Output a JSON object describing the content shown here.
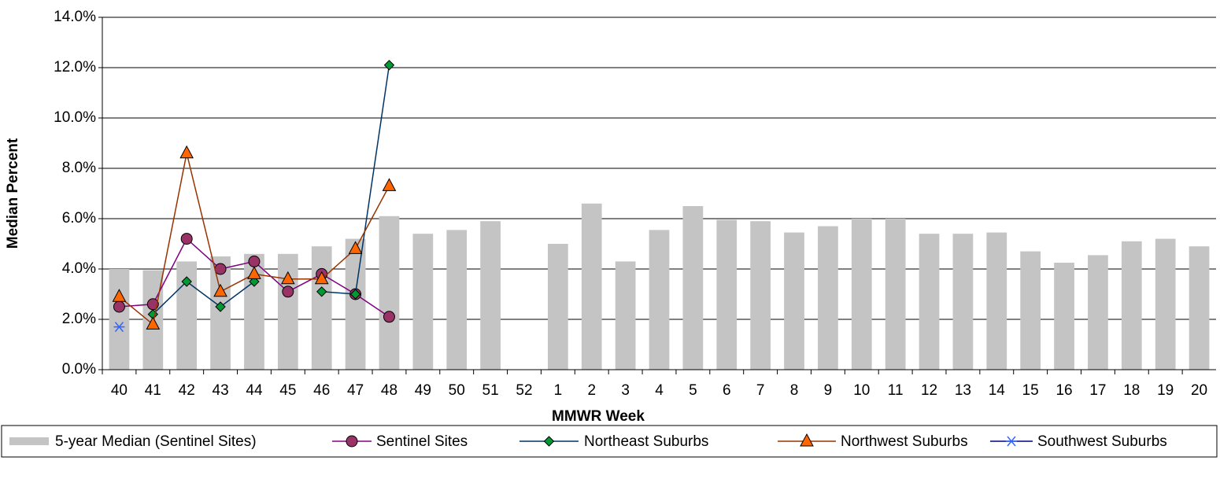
{
  "chart_data": {
    "type": "bar_line",
    "x_label": "MMWR Week",
    "y_label": "Median Percent",
    "categories": [
      "40",
      "41",
      "42",
      "43",
      "44",
      "45",
      "46",
      "47",
      "48",
      "49",
      "50",
      "51",
      "52",
      "1",
      "2",
      "3",
      "4",
      "5",
      "6",
      "7",
      "8",
      "9",
      "10",
      "11",
      "12",
      "13",
      "14",
      "15",
      "16",
      "17",
      "18",
      "19",
      "20"
    ],
    "ylim": [
      0,
      14
    ],
    "yticks": [
      {
        "value": 0,
        "label": "0.0%"
      },
      {
        "value": 2,
        "label": "2.0%"
      },
      {
        "value": 4,
        "label": "4.0%"
      },
      {
        "value": 6,
        "label": "6.0%"
      },
      {
        "value": 8,
        "label": "8.0%"
      },
      {
        "value": 10,
        "label": "10.0%"
      },
      {
        "value": 12,
        "label": "12.0%"
      },
      {
        "value": 14,
        "label": "14.0%"
      }
    ],
    "grid": true,
    "legend": "bottom",
    "series": [
      {
        "name": "5-year Median (Sentinel Sites)",
        "kind": "bar",
        "color": "#c4c4c4",
        "values": [
          4.0,
          3.95,
          4.3,
          4.5,
          4.6,
          4.6,
          4.9,
          5.2,
          6.1,
          5.4,
          5.55,
          5.9,
          null,
          5.0,
          6.6,
          4.3,
          5.55,
          6.5,
          5.95,
          5.9,
          5.45,
          5.7,
          6.0,
          6.0,
          5.4,
          5.4,
          5.45,
          4.7,
          4.25,
          4.55,
          5.1,
          5.2,
          4.9
        ]
      },
      {
        "name": "Sentinel Sites",
        "kind": "line",
        "color": "#800080",
        "marker": "circle",
        "marker_color": "#993366",
        "values": [
          2.5,
          2.6,
          5.2,
          4.0,
          4.3,
          3.1,
          3.8,
          3.0,
          2.1,
          null,
          null,
          null,
          null,
          null,
          null,
          null,
          null,
          null,
          null,
          null,
          null,
          null,
          null,
          null,
          null,
          null,
          null,
          null,
          null,
          null,
          null,
          null,
          null
        ]
      },
      {
        "name": "Northeast Suburbs",
        "kind": "line",
        "color": "#003366",
        "marker": "diamond",
        "marker_color": "#009933",
        "values": [
          null,
          2.2,
          3.5,
          2.5,
          3.5,
          null,
          3.1,
          3.0,
          12.1,
          null,
          null,
          null,
          null,
          null,
          null,
          null,
          null,
          null,
          null,
          null,
          null,
          null,
          null,
          null,
          null,
          null,
          null,
          null,
          null,
          null,
          null,
          null,
          null
        ]
      },
      {
        "name": "Northwest Suburbs",
        "kind": "line",
        "color": "#993300",
        "marker": "triangle",
        "marker_color": "#ff6600",
        "values": [
          2.9,
          1.8,
          8.6,
          3.1,
          3.8,
          3.6,
          3.6,
          4.8,
          7.3,
          null,
          null,
          null,
          null,
          null,
          null,
          null,
          null,
          null,
          null,
          null,
          null,
          null,
          null,
          null,
          null,
          null,
          null,
          null,
          null,
          null,
          null,
          null,
          null
        ]
      },
      {
        "name": "Southwest Suburbs",
        "kind": "line",
        "color": "#000080",
        "marker": "asterisk",
        "marker_color": "#3366ff",
        "values": [
          1.7,
          null,
          null,
          null,
          null,
          null,
          null,
          null,
          null,
          null,
          null,
          null,
          null,
          null,
          null,
          null,
          null,
          null,
          null,
          null,
          null,
          null,
          null,
          null,
          null,
          null,
          null,
          null,
          null,
          null,
          null,
          null,
          null
        ]
      }
    ]
  }
}
